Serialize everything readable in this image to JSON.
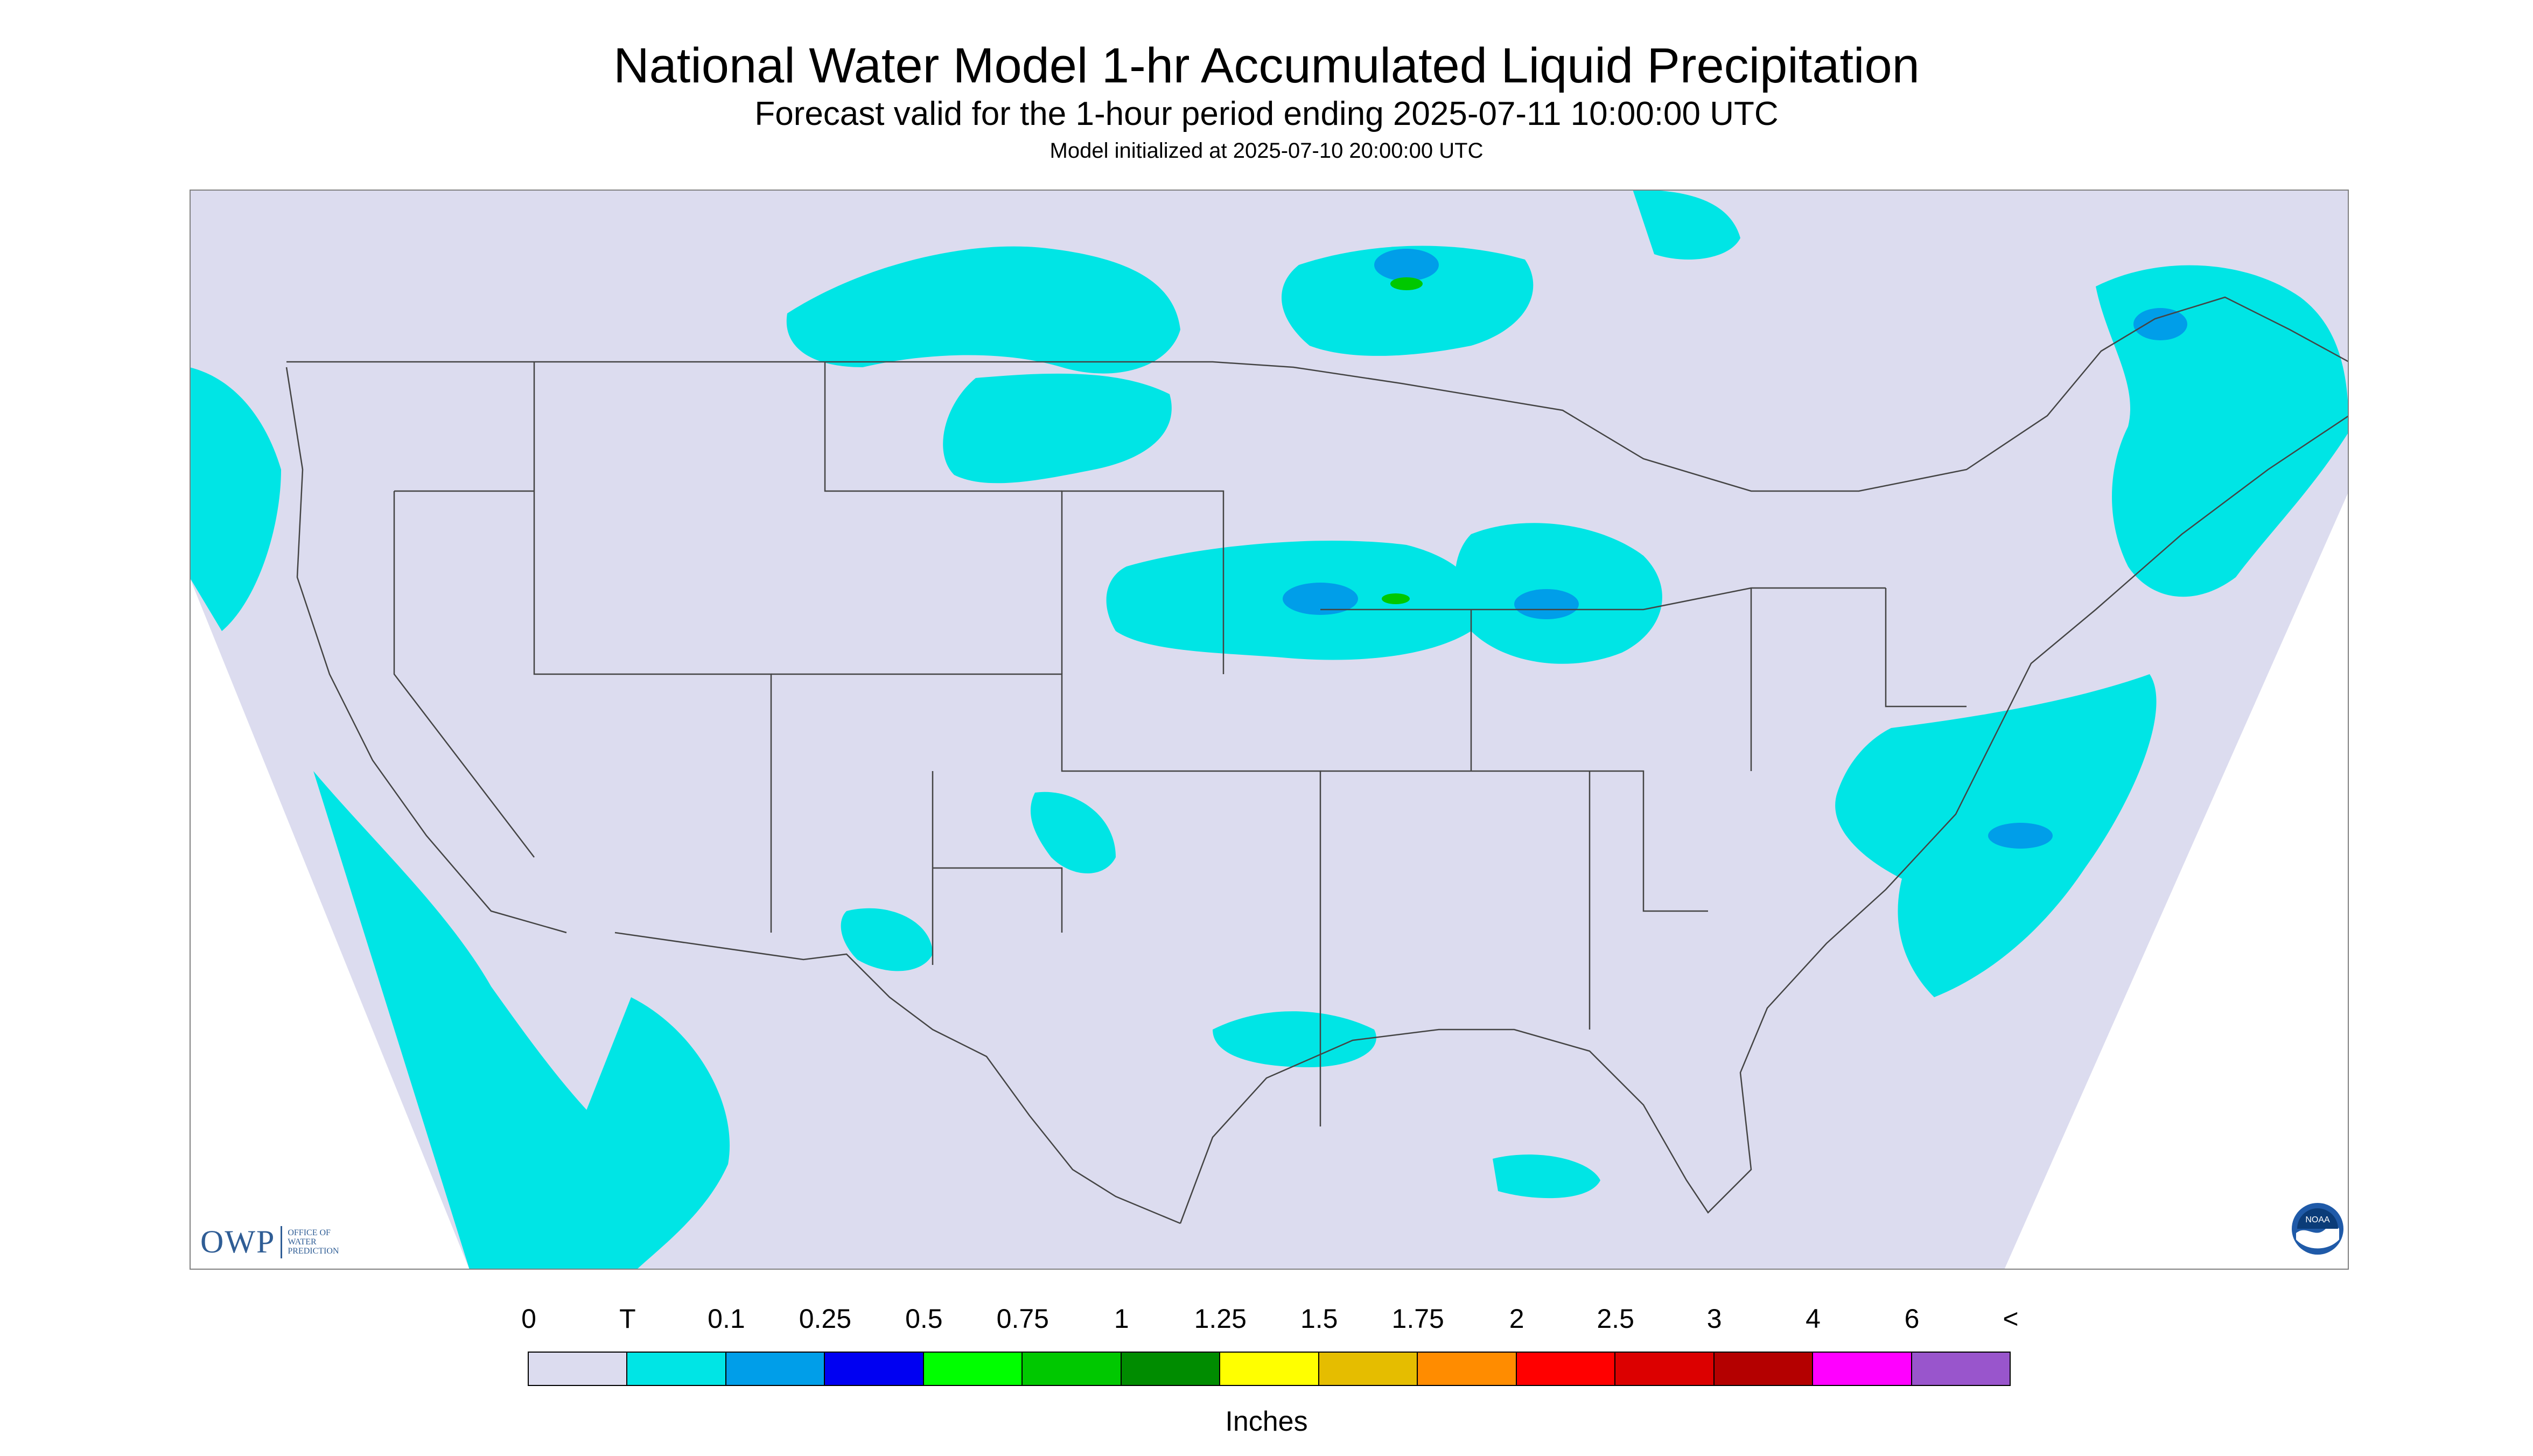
{
  "header": {
    "title": "National Water Model 1-hr Accumulated Liquid Precipitation",
    "subtitle": "Forecast valid for the 1-hour period ending 2025-07-11 10:00:00 UTC",
    "init": "Model initialized at 2025-07-10 20:00:00 UTC"
  },
  "logos": {
    "owp_mark": "OWP",
    "owp_sub_1": "OFFICE OF",
    "owp_sub_2": "WATER",
    "owp_sub_3": "PREDICTION",
    "noaa_mark": "NOAA"
  },
  "map": {
    "background": "#dcdcef",
    "border_color": "#808080",
    "line_color": "#444444"
  },
  "legend": {
    "labels": [
      "0",
      "T",
      "0.1",
      "0.25",
      "0.5",
      "0.75",
      "1",
      "1.25",
      "1.5",
      "1.75",
      "2",
      "2.5",
      "3",
      "4",
      "6",
      "<"
    ],
    "colors": [
      "#dcdcef",
      "#00e5e5",
      "#009ee9",
      "#0000f2",
      "#00ff00",
      "#00c800",
      "#008c00",
      "#ffff00",
      "#e5bd00",
      "#ff8c00",
      "#ff0000",
      "#dc0000",
      "#b40000",
      "#ff00ff",
      "#9955cc"
    ],
    "units": "Inches"
  }
}
